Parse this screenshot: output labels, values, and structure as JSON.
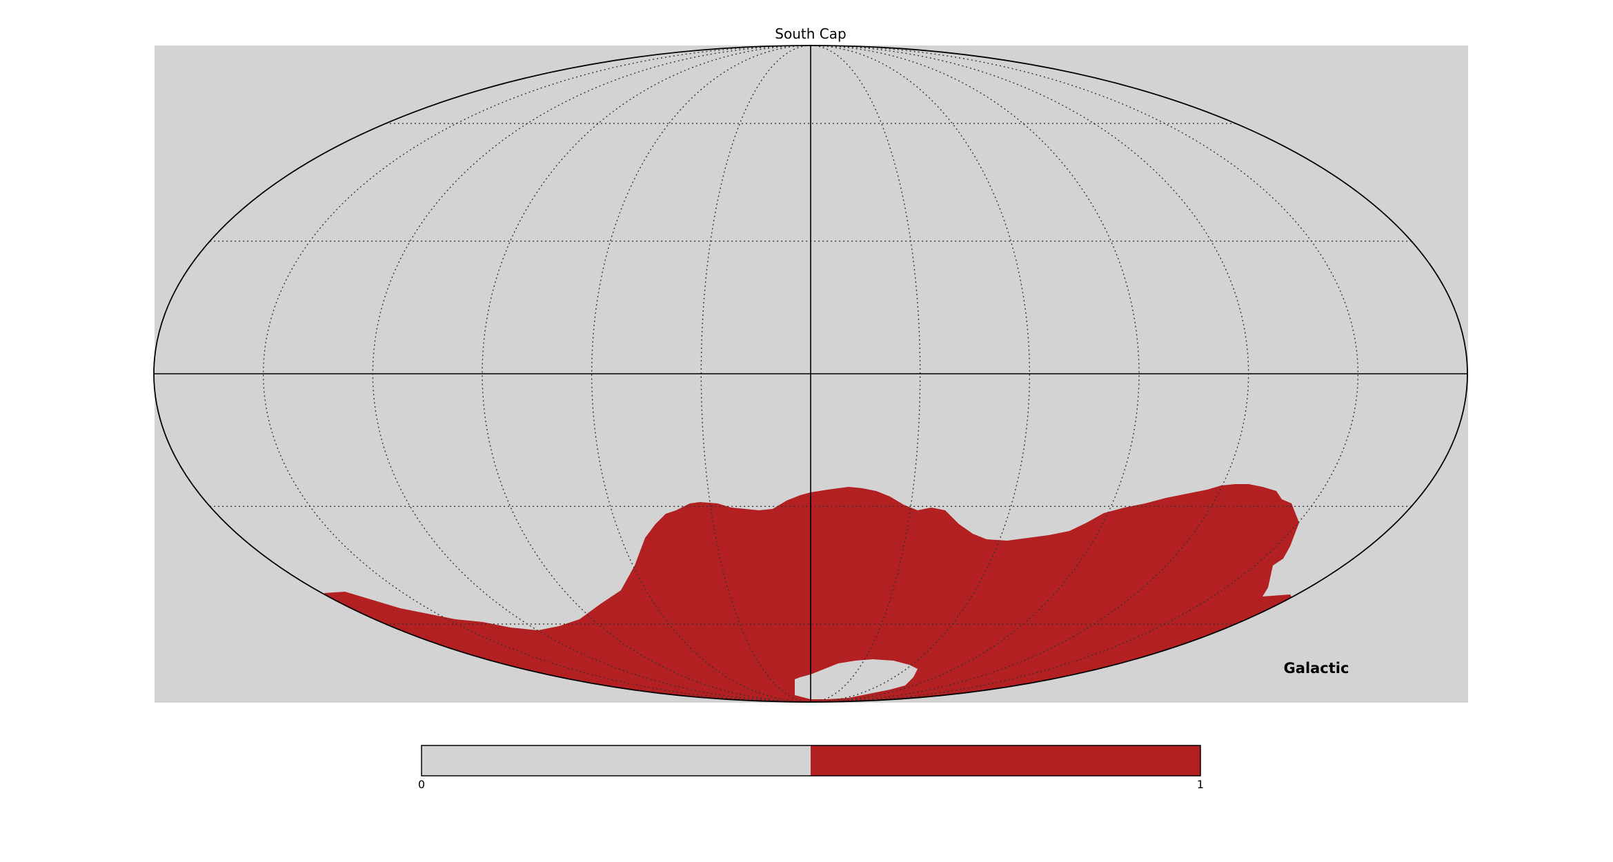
{
  "figure": {
    "title": "South Cap",
    "coordinate_system": "Galactic",
    "projection": "mollweide",
    "background_color": "#d3d3d3",
    "mask_color": "#b22022"
  },
  "colorbar": {
    "min_label": "0",
    "max_label": "1",
    "colors": [
      "#d3d3d3",
      "#b22022"
    ]
  }
}
